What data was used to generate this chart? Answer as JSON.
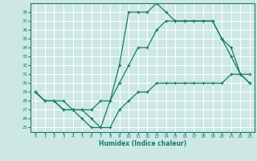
{
  "xlabel": "Humidex (Indice chaleur)",
  "bg_color": "#cde8e4",
  "grid_color": "#ffffff",
  "line_color": "#1a7a6e",
  "xlim": [
    -0.5,
    23.5
  ],
  "ylim": [
    24.5,
    39.0
  ],
  "xticks": [
    0,
    1,
    2,
    3,
    4,
    5,
    6,
    7,
    8,
    9,
    10,
    11,
    12,
    13,
    14,
    15,
    16,
    17,
    18,
    19,
    20,
    21,
    22,
    23
  ],
  "yticks": [
    25,
    26,
    27,
    28,
    29,
    30,
    31,
    32,
    33,
    34,
    35,
    36,
    37,
    38
  ],
  "line1_x": [
    0,
    1,
    2,
    3,
    4,
    5,
    6,
    7,
    8,
    9,
    10,
    11,
    12,
    13,
    14,
    15,
    16,
    17,
    18,
    19,
    20,
    21,
    22,
    23
  ],
  "line1_y": [
    29,
    28,
    28,
    28,
    27,
    27,
    26,
    25,
    25,
    27,
    28,
    29,
    29,
    30,
    30,
    30,
    30,
    30,
    30,
    30,
    30,
    31,
    31,
    31
  ],
  "line2_x": [
    0,
    1,
    2,
    3,
    4,
    5,
    6,
    7,
    8,
    9,
    10,
    11,
    12,
    13,
    14,
    15,
    16,
    17,
    18,
    19,
    20,
    21,
    22,
    23
  ],
  "line2_y": [
    29,
    28,
    28,
    27,
    27,
    26,
    25,
    25,
    28,
    32,
    38,
    38,
    38,
    39,
    38,
    37,
    37,
    37,
    37,
    37,
    35,
    33,
    31,
    30
  ],
  "line3_x": [
    0,
    1,
    2,
    3,
    4,
    5,
    6,
    7,
    8,
    9,
    10,
    11,
    12,
    13,
    14,
    15,
    16,
    17,
    18,
    19,
    20,
    21,
    22,
    23
  ],
  "line3_y": [
    29,
    28,
    28,
    27,
    27,
    27,
    27,
    28,
    28,
    30,
    32,
    34,
    34,
    36,
    37,
    37,
    37,
    37,
    37,
    37,
    35,
    34,
    31,
    30
  ]
}
